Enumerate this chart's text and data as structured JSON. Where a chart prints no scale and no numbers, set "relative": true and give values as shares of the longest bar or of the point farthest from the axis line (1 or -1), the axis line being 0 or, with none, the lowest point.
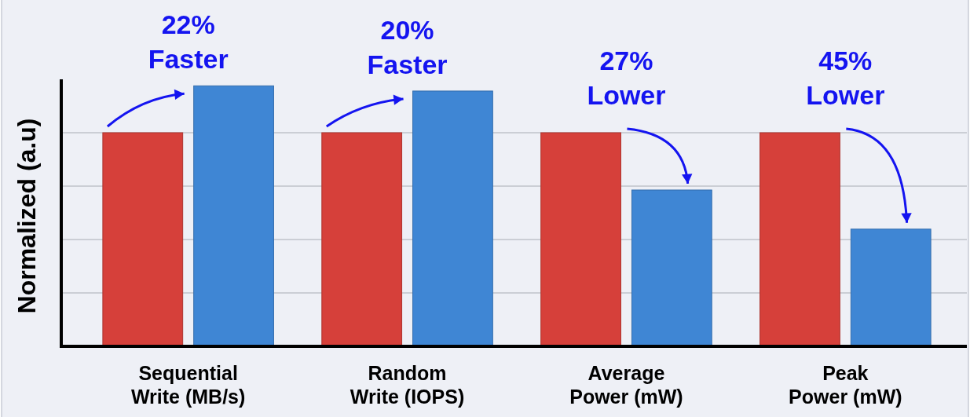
{
  "chart_data": {
    "type": "bar",
    "ylabel": "Normalized (a.u)",
    "relative": true,
    "grid": "y",
    "categories": [
      "Sequential\nWrite (MB/s)",
      "Random\nWrite (IOPS)",
      "Average\nPower (mW)",
      "Peak\nPower (mW)"
    ],
    "series": [
      {
        "color": "#d6403a",
        "values": [
          0.82,
          0.82,
          0.82,
          0.82
        ]
      },
      {
        "color": "#3f86d4",
        "values": [
          1,
          0.98,
          0.6,
          0.45
        ]
      }
    ],
    "annotations": [
      "22%\nFaster",
      "20%\nFaster",
      "27%\nLower",
      "45%\nLower"
    ]
  }
}
